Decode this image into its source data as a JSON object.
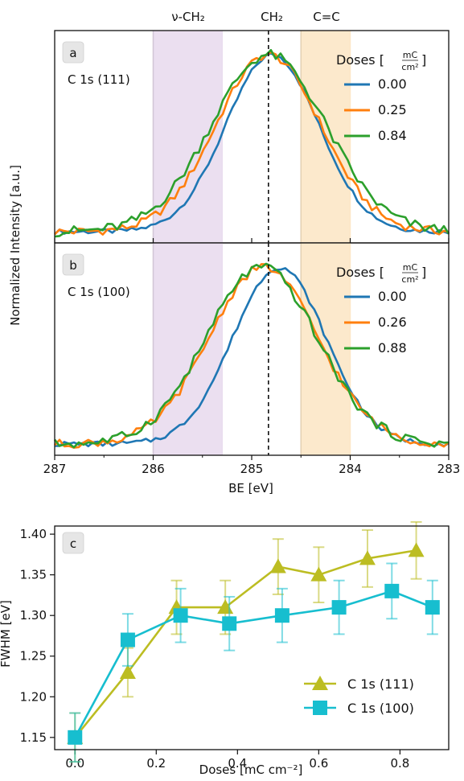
{
  "figure": {
    "ylabel_top": "Normalized Intensity [a.u.]",
    "xlabel_top": "BE [eV]",
    "xlabel_bottom": "Doses [mC cm⁻²]",
    "ylabel_bottom_partial": "FWHM [eV]",
    "region_labels": [
      "ν-CH₂",
      "CH₂",
      "C=C"
    ]
  },
  "chart_data": [
    {
      "type": "line",
      "panel": "a",
      "annotation": "C 1s (111)",
      "legend_title": "Doses [mC/cm²]",
      "legend_num": "mC",
      "legend_den": "cm²",
      "xlabel": "BE [eV]",
      "xlim": [
        287,
        283
      ],
      "ylabel": "Normalized Intensity [a.u.]",
      "peak_marker_be": 284.83,
      "bands": [
        {
          "label": "ν-CH₂",
          "from": 286.0,
          "to": 285.3,
          "color": "#e9dcee"
        },
        {
          "label": "C=C",
          "from": 284.5,
          "to": 284.0,
          "color": "#fce7c7"
        }
      ],
      "series": [
        {
          "name": "0.00",
          "color": "#1f77b4",
          "peak_be": 284.79,
          "sigma": 0.47,
          "tail": 0.017
        },
        {
          "name": "0.25",
          "color": "#ff7f0e",
          "peak_be": 284.83,
          "sigma": 0.53,
          "tail": 0.03
        },
        {
          "name": "0.84",
          "color": "#2ca02c",
          "peak_be": 284.83,
          "sigma": 0.58,
          "tail": 0.038
        }
      ]
    },
    {
      "type": "line",
      "panel": "b",
      "annotation": "C 1s (100)",
      "legend_title": "Doses [mC/cm²]",
      "legend_num": "mC",
      "legend_den": "cm²",
      "xlabel": "BE [eV]",
      "xlim": [
        287,
        283
      ],
      "peak_marker_be": 284.83,
      "bands": [
        {
          "label": "ν-CH₂",
          "from": 286.0,
          "to": 285.3,
          "color": "#e9dcee"
        },
        {
          "label": "C=C",
          "from": 284.5,
          "to": 284.0,
          "color": "#fce7c7"
        }
      ],
      "series": [
        {
          "name": "0.00",
          "color": "#1f77b4",
          "peak_be": 284.72,
          "sigma": 0.47,
          "tail": 0.018
        },
        {
          "name": "0.26",
          "color": "#ff7f0e",
          "peak_be": 284.88,
          "sigma": 0.55,
          "tail": 0.03
        },
        {
          "name": "0.88",
          "color": "#2ca02c",
          "peak_be": 284.9,
          "sigma": 0.56,
          "tail": 0.035
        }
      ]
    },
    {
      "type": "line",
      "panel": "c",
      "xlabel": "Doses [mC cm⁻²]",
      "ylabel": "FWHM [eV]",
      "xlim": [
        -0.05,
        0.92
      ],
      "ylim": [
        1.135,
        1.41
      ],
      "xticks": [
        "0.0",
        "0.2",
        "0.4",
        "0.6",
        "0.8"
      ],
      "xtick_values": [
        0.0,
        0.2,
        0.4,
        0.6,
        0.8
      ],
      "yticks": [
        "1.15",
        "1.20",
        "1.25",
        "1.30",
        "1.35",
        "1.40"
      ],
      "ytick_values": [
        1.15,
        1.2,
        1.25,
        1.3,
        1.35,
        1.4
      ],
      "legend_position": "lower-right",
      "series": [
        {
          "name": "C 1s (111)",
          "color": "#bcbd22",
          "marker": "triangle",
          "x": [
            0.0,
            0.13,
            0.25,
            0.37,
            0.5,
            0.6,
            0.72,
            0.84
          ],
          "y": [
            1.15,
            1.23,
            1.31,
            1.31,
            1.36,
            1.35,
            1.37,
            1.38
          ],
          "err": [
            0.03,
            0.03,
            0.033,
            0.033,
            0.034,
            0.034,
            0.035,
            0.035
          ]
        },
        {
          "name": "C 1s (100)",
          "color": "#17becf",
          "marker": "square",
          "x": [
            0.0,
            0.13,
            0.26,
            0.38,
            0.51,
            0.65,
            0.78,
            0.88
          ],
          "y": [
            1.15,
            1.27,
            1.3,
            1.29,
            1.3,
            1.31,
            1.33,
            1.31
          ],
          "err": [
            0.03,
            0.032,
            0.033,
            0.033,
            0.033,
            0.033,
            0.034,
            0.033
          ]
        }
      ]
    }
  ]
}
